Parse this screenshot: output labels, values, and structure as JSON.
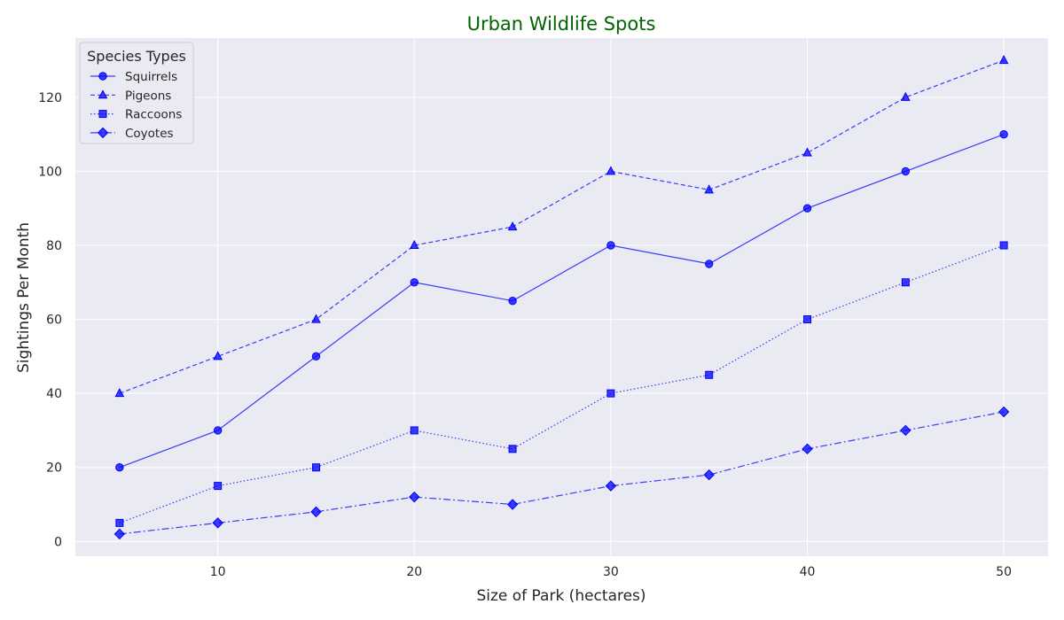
{
  "chart_data": {
    "type": "line",
    "title": "Urban Wildlife Spots",
    "xlabel": "Size of Park (hectares)",
    "ylabel": "Sightings Per Month",
    "x": [
      5,
      10,
      15,
      20,
      25,
      30,
      35,
      40,
      45,
      50
    ],
    "xlim": [
      2.75,
      52.25
    ],
    "ylim": [
      -4,
      136
    ],
    "xticks": [
      10,
      20,
      30,
      40,
      50
    ],
    "yticks": [
      0,
      20,
      40,
      60,
      80,
      100,
      120
    ],
    "grid": true,
    "legend": {
      "title": "Species Types",
      "position": "top-left"
    },
    "colors": {
      "title": "#006400",
      "line": "#0000ff",
      "background": "#eaeaf2",
      "grid": "#ffffff"
    },
    "series": [
      {
        "name": "Squirrels",
        "values": [
          20,
          30,
          50,
          70,
          65,
          80,
          75,
          90,
          100,
          110
        ],
        "marker": "circle",
        "linestyle": "solid"
      },
      {
        "name": "Pigeons",
        "values": [
          40,
          50,
          60,
          80,
          85,
          100,
          95,
          105,
          120,
          130
        ],
        "marker": "triangle",
        "linestyle": "dashed"
      },
      {
        "name": "Raccoons",
        "values": [
          5,
          15,
          20,
          30,
          25,
          40,
          45,
          60,
          70,
          80
        ],
        "marker": "square",
        "linestyle": "dotted"
      },
      {
        "name": "Coyotes",
        "values": [
          2,
          5,
          8,
          12,
          10,
          15,
          18,
          25,
          30,
          35
        ],
        "marker": "diamond",
        "linestyle": "dashdot"
      }
    ]
  }
}
